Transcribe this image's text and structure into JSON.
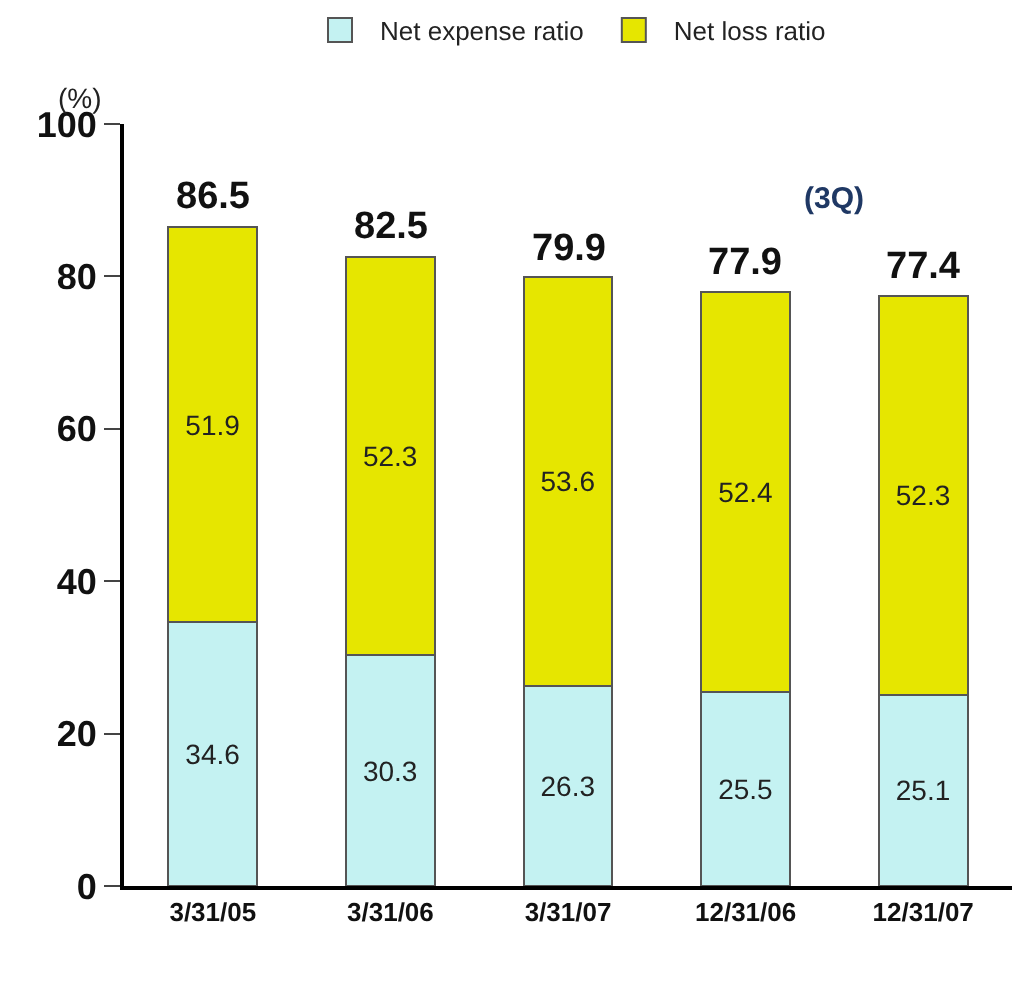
{
  "chart_data": {
    "type": "bar",
    "stacked": true,
    "ylabel": "(%)",
    "categories": [
      "3/31/05",
      "3/31/06",
      "3/31/07",
      "12/31/06",
      "12/31/07"
    ],
    "series": [
      {
        "name": "Net expense ratio",
        "color": "#c4f2f2",
        "values": [
          34.6,
          30.3,
          26.3,
          25.5,
          25.1
        ]
      },
      {
        "name": "Net loss ratio",
        "color": "#e6e600",
        "values": [
          51.9,
          52.3,
          53.6,
          52.4,
          52.3
        ]
      }
    ],
    "totals": [
      "86.5",
      "82.5",
      "79.9",
      "77.9",
      "77.4"
    ],
    "data_labels": true,
    "ylim": [
      0,
      100
    ],
    "yticks": [
      0,
      20,
      40,
      60,
      80,
      100
    ],
    "annotations": [
      "(3Q)"
    ],
    "legend": "top"
  }
}
